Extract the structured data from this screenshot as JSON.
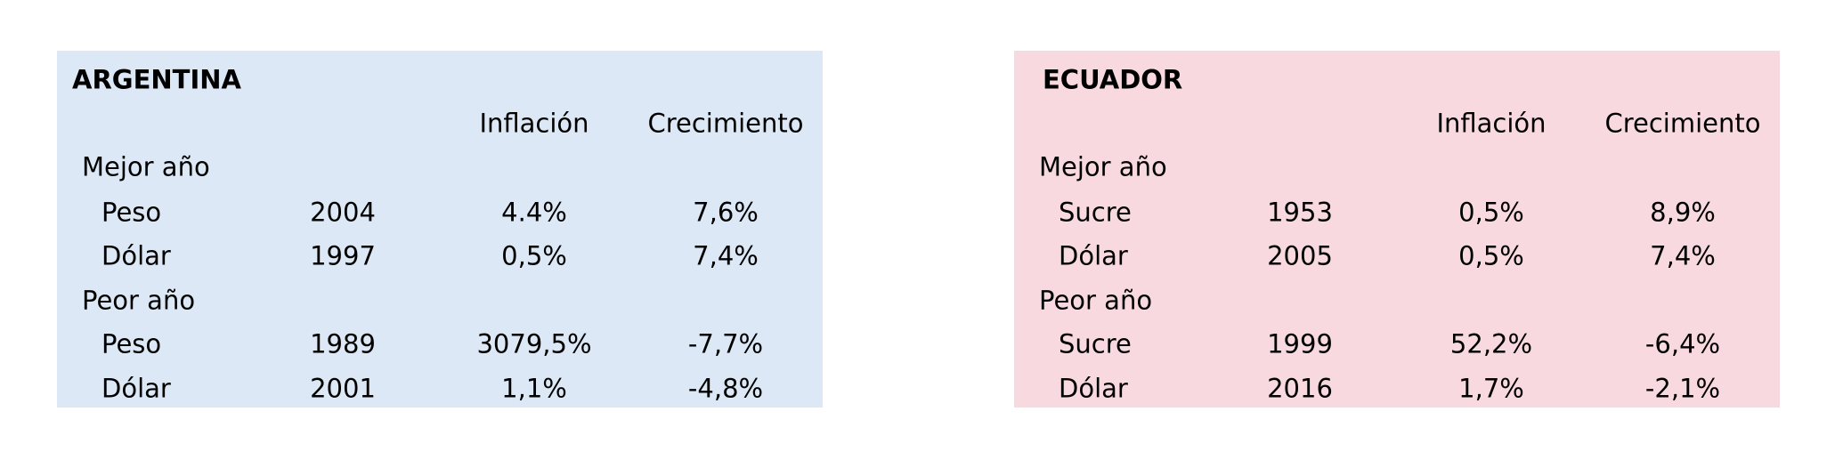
{
  "panels": [
    {
      "title": "ARGENTINA",
      "headers": [
        "Inflación",
        "Crecimiento"
      ],
      "groups": [
        {
          "label": "Mejor año",
          "rows": [
            [
              "Peso",
              "2004",
              "4.4%",
              "7,6%"
            ],
            [
              "Dólar",
              "1997",
              "0,5%",
              "7,4%"
            ]
          ]
        },
        {
          "label": "Peor año",
          "rows": [
            [
              "Peso",
              "1989",
              "3079,5%",
              "-7,7%"
            ],
            [
              "Dólar",
              "2001",
              "1,1%",
              "-4,8%"
            ]
          ]
        }
      ]
    },
    {
      "title": "ECUADOR",
      "headers": [
        "Inflación",
        "Crecimiento"
      ],
      "groups": [
        {
          "label": "Mejor año",
          "rows": [
            [
              "Sucre",
              "1953",
              "0,5%",
              "8,9%"
            ],
            [
              "Dólar",
              "2005",
              "0,5%",
              "7,4%"
            ]
          ]
        },
        {
          "label": "Peor año",
          "rows": [
            [
              "Sucre",
              "1999",
              "52,2%",
              "-6,4%"
            ],
            [
              "Dólar",
              "2016",
              "1,7%",
              "-2,1%"
            ]
          ]
        }
      ]
    }
  ]
}
